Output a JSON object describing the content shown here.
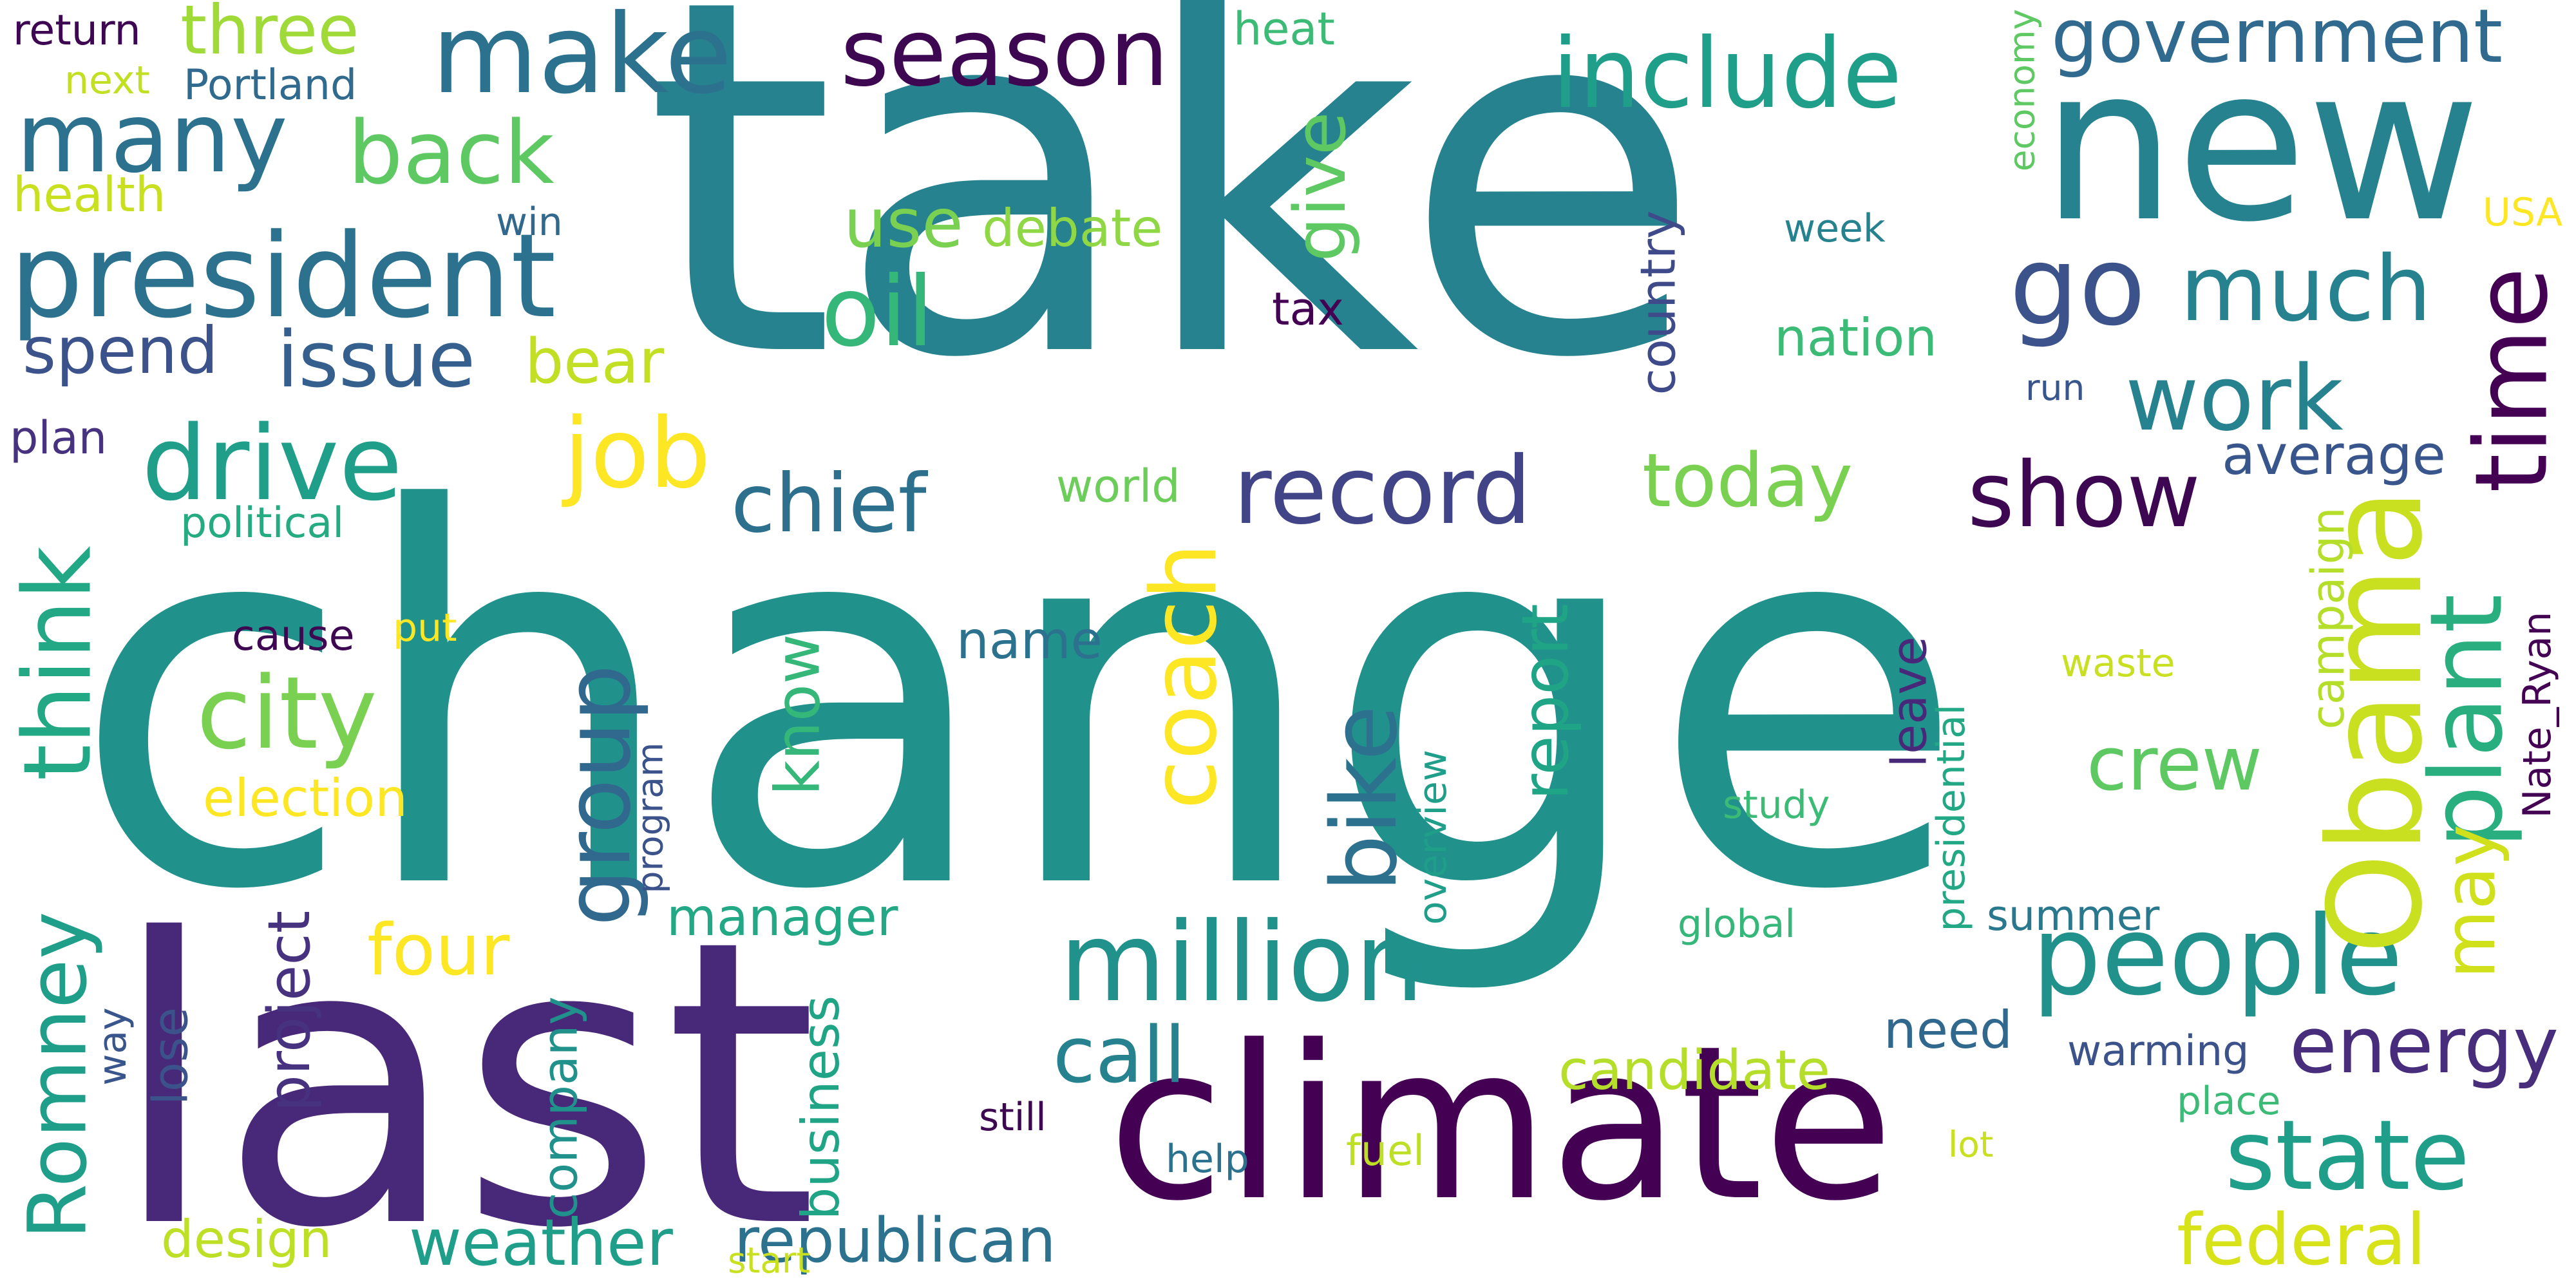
{
  "words": [
    {
      "text": "take",
      "color": "#26828e"
    },
    {
      "text": "change",
      "color": "#21918c"
    },
    {
      "text": "last",
      "color": "#482878"
    },
    {
      "text": "climate",
      "color": "#440154"
    },
    {
      "text": "new",
      "color": "#26828e"
    },
    {
      "text": "president",
      "color": "#2c728e"
    },
    {
      "text": "million",
      "color": "#21918c"
    },
    {
      "text": "people",
      "color": "#21918c"
    },
    {
      "text": "make",
      "color": "#2c728e"
    },
    {
      "text": "season",
      "color": "#3e0751"
    },
    {
      "text": "include",
      "color": "#1f9e89"
    },
    {
      "text": "many",
      "color": "#2c728e"
    },
    {
      "text": "go",
      "color": "#3b528b"
    },
    {
      "text": "much",
      "color": "#26828e"
    },
    {
      "text": "work",
      "color": "#26828e"
    },
    {
      "text": "time",
      "color": "#440154"
    },
    {
      "text": "government",
      "color": "#306a8e"
    },
    {
      "text": "drive",
      "color": "#1f9e89"
    },
    {
      "text": "record",
      "color": "#414487"
    },
    {
      "text": "Obama",
      "color": "#c9e020"
    },
    {
      "text": "state",
      "color": "#1f9e89"
    },
    {
      "text": "show",
      "color": "#3e0751"
    },
    {
      "text": "back",
      "color": "#5ec962"
    },
    {
      "text": "oil",
      "color": "#35b779"
    },
    {
      "text": "job",
      "color": "#fde725"
    },
    {
      "text": "three",
      "color": "#a0da39"
    },
    {
      "text": "city",
      "color": "#7ad151"
    },
    {
      "text": "think",
      "color": "#22a884"
    },
    {
      "text": "group",
      "color": "#31688e"
    },
    {
      "text": "coach",
      "color": "#fde725"
    },
    {
      "text": "bike",
      "color": "#2c728e"
    },
    {
      "text": "plant",
      "color": "#29af7f"
    },
    {
      "text": "Romney",
      "color": "#1f9e89"
    },
    {
      "text": "energy",
      "color": "#472d7b"
    },
    {
      "text": "issue",
      "color": "#355f8d"
    },
    {
      "text": "chief",
      "color": "#2d708e"
    },
    {
      "text": "today",
      "color": "#7ad151"
    },
    {
      "text": "give",
      "color": "#5ec962"
    },
    {
      "text": "crew",
      "color": "#5ec962"
    },
    {
      "text": "report",
      "color": "#20a486"
    },
    {
      "text": "call",
      "color": "#26828e"
    },
    {
      "text": "federal",
      "color": "#d8e219"
    },
    {
      "text": "four",
      "color": "#fde725"
    },
    {
      "text": "spend",
      "color": "#3b528b"
    },
    {
      "text": "use",
      "color": "#7ad151"
    },
    {
      "text": "bear",
      "color": "#c2df23"
    },
    {
      "text": "weather",
      "color": "#1f9e89"
    },
    {
      "text": "republican",
      "color": "#2c728e"
    },
    {
      "text": "may",
      "color": "#d0e11c"
    },
    {
      "text": "know",
      "color": "#35b779"
    },
    {
      "text": "project",
      "color": "#46327e"
    },
    {
      "text": "candidate",
      "color": "#b5de2b"
    },
    {
      "text": "manager",
      "color": "#22a884"
    },
    {
      "text": "business",
      "color": "#20a486"
    },
    {
      "text": "company",
      "color": "#21918c"
    },
    {
      "text": "average",
      "color": "#39568c"
    },
    {
      "text": "need",
      "color": "#31688e"
    },
    {
      "text": "leave",
      "color": "#482878"
    },
    {
      "text": "campaign",
      "color": "#b5de2b"
    },
    {
      "text": "election",
      "color": "#fde725"
    },
    {
      "text": "debate",
      "color": "#8fd744"
    },
    {
      "text": "nation",
      "color": "#3bbb75"
    },
    {
      "text": "country",
      "color": "#3e4a89"
    },
    {
      "text": "design",
      "color": "#bddf26"
    },
    {
      "text": "name",
      "color": "#2c728e"
    },
    {
      "text": "world",
      "color": "#6ccd5a"
    },
    {
      "text": "lose",
      "color": "#3b528b"
    },
    {
      "text": "tax",
      "color": "#440154"
    },
    {
      "text": "summer",
      "color": "#2a788e"
    },
    {
      "text": "warming",
      "color": "#3b528b"
    },
    {
      "text": "heat",
      "color": "#3bbb75"
    },
    {
      "text": "health",
      "color": "#c9e020"
    },
    {
      "text": "political",
      "color": "#25ab82"
    },
    {
      "text": "plan",
      "color": "#46327e"
    },
    {
      "text": "Portland",
      "color": "#306a8e"
    },
    {
      "text": "return",
      "color": "#3e0751"
    },
    {
      "text": "next",
      "color": "#c2df23"
    },
    {
      "text": "win",
      "color": "#31688e"
    },
    {
      "text": "economy",
      "color": "#5ec962"
    },
    {
      "text": "USA",
      "color": "#fde725"
    },
    {
      "text": "week",
      "color": "#26828e"
    },
    {
      "text": "run",
      "color": "#39568c"
    },
    {
      "text": "cause",
      "color": "#3e0751"
    },
    {
      "text": "put",
      "color": "#fde725"
    },
    {
      "text": "waste",
      "color": "#c9e020"
    },
    {
      "text": "study",
      "color": "#3bbb75"
    },
    {
      "text": "global",
      "color": "#35b779"
    },
    {
      "text": "overview",
      "color": "#1f9e89"
    },
    {
      "text": "program",
      "color": "#3b528b"
    },
    {
      "text": "presidential",
      "color": "#22a884"
    },
    {
      "text": "Nate_Ryan",
      "color": "#440154"
    },
    {
      "text": "still",
      "color": "#3e0751"
    },
    {
      "text": "help",
      "color": "#2c728e"
    },
    {
      "text": "fuel",
      "color": "#bddf26"
    },
    {
      "text": "lot",
      "color": "#c9e020"
    },
    {
      "text": "place",
      "color": "#3bbb75"
    },
    {
      "text": "way",
      "color": "#39568c"
    },
    {
      "text": "start",
      "color": "#c9e020"
    }
  ]
}
